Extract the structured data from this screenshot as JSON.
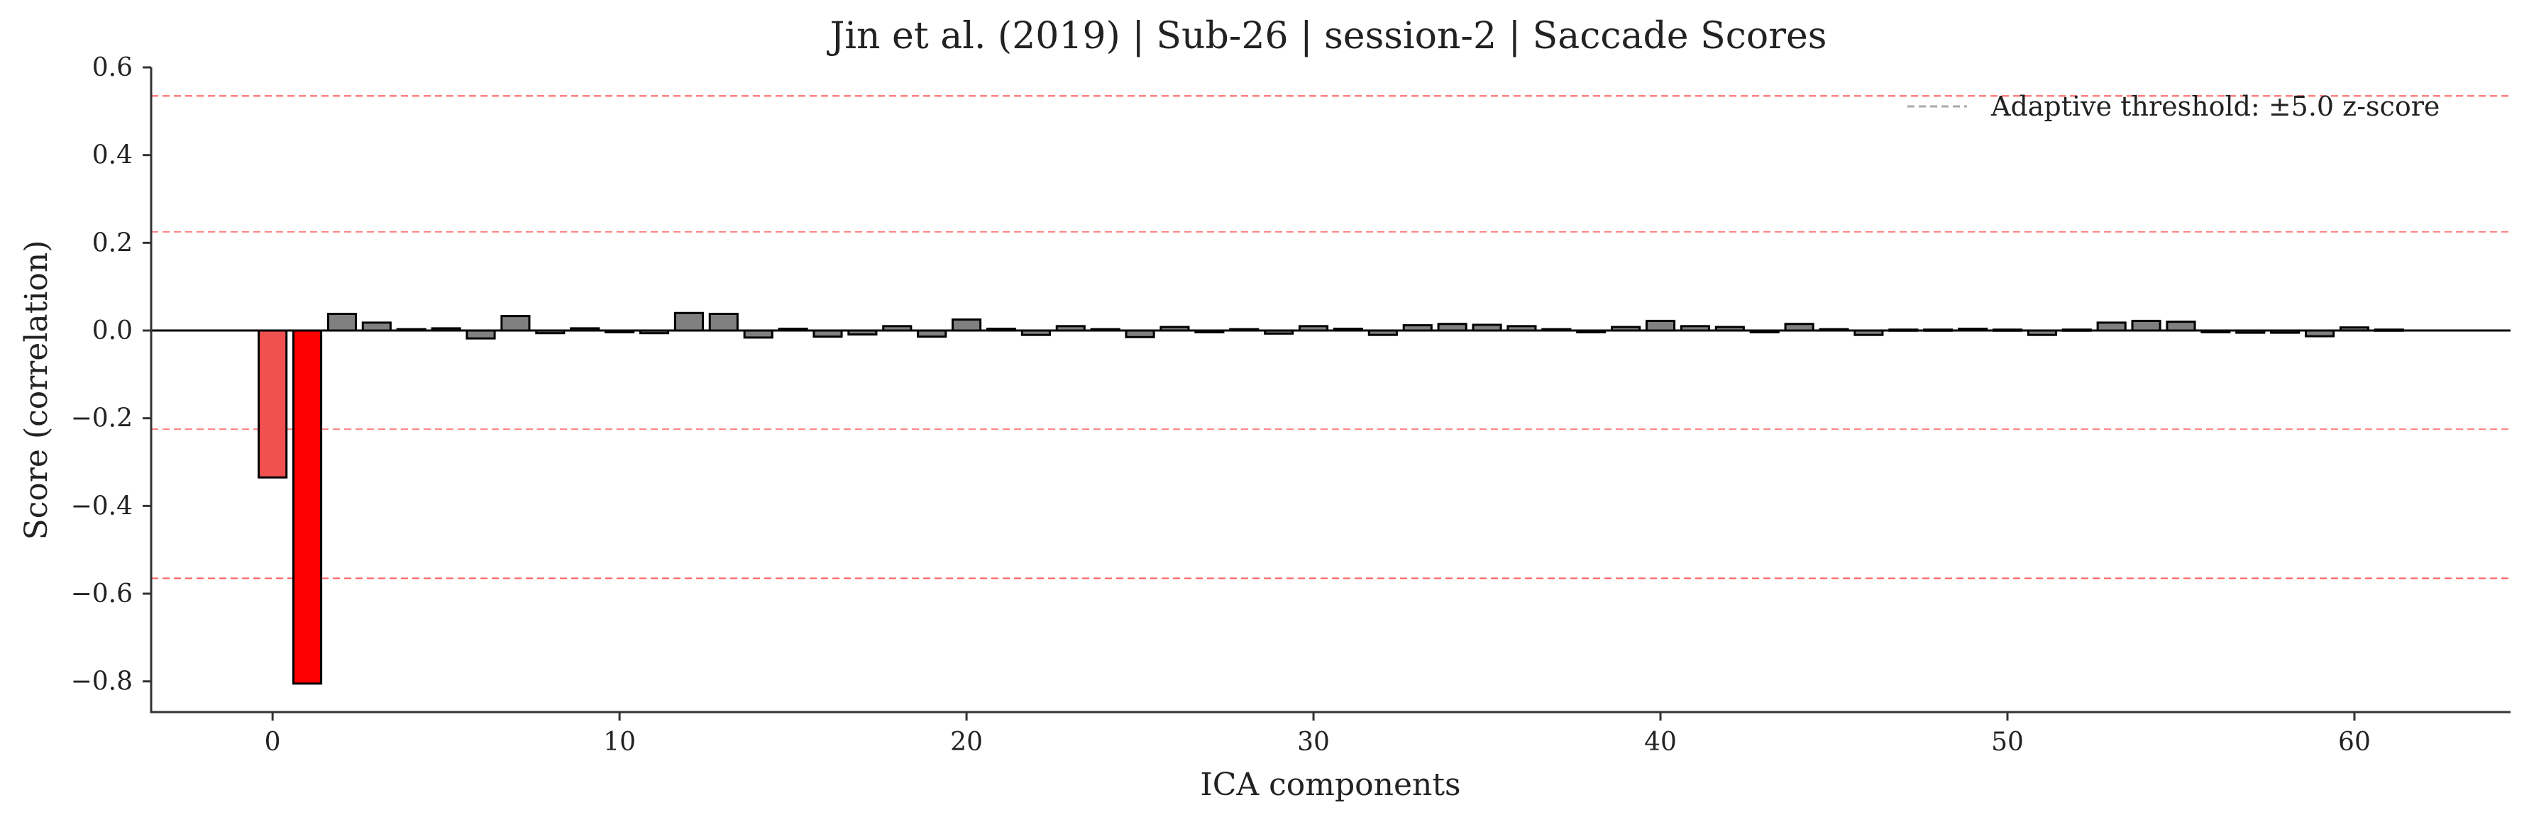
{
  "chart_data": {
    "type": "bar",
    "title": "Jin et al. (2019) | Sub-26 | session-2 | Saccade Scores",
    "xlabel": "ICA components",
    "ylabel": "Score (correlation)",
    "xlim": [
      -3.5,
      64.5
    ],
    "ylim": [
      -0.87,
      0.6
    ],
    "x_ticks": [
      0,
      10,
      20,
      30,
      40,
      50,
      60
    ],
    "x_tick_labels": [
      "0",
      "10",
      "20",
      "30",
      "40",
      "50",
      "60"
    ],
    "y_ticks": [
      0.6,
      0.4,
      0.2,
      0.0,
      -0.2,
      -0.4,
      -0.6,
      -0.8
    ],
    "y_tick_labels": [
      "0.6",
      "0.4",
      "0.2",
      "0.0",
      "−0.2",
      "−0.4",
      "−0.6",
      "−0.8"
    ],
    "x": [
      0,
      1,
      2,
      3,
      4,
      5,
      6,
      7,
      8,
      9,
      10,
      11,
      12,
      13,
      14,
      15,
      16,
      17,
      18,
      19,
      20,
      21,
      22,
      23,
      24,
      25,
      26,
      27,
      28,
      29,
      30,
      31,
      32,
      33,
      34,
      35,
      36,
      37,
      38,
      39,
      40,
      41,
      42,
      43,
      44,
      45,
      46,
      47,
      48,
      49,
      50,
      51,
      52,
      53,
      54,
      55,
      56,
      57,
      58,
      59,
      60,
      61
    ],
    "values": [
      -0.335,
      -0.805,
      0.038,
      0.018,
      0.003,
      0.005,
      -0.018,
      0.033,
      -0.006,
      0.005,
      -0.004,
      -0.006,
      0.04,
      0.038,
      -0.016,
      0.004,
      -0.014,
      -0.009,
      0.01,
      -0.014,
      0.025,
      0.004,
      -0.01,
      0.01,
      0.003,
      -0.015,
      0.008,
      -0.004,
      0.003,
      -0.007,
      0.01,
      0.004,
      -0.01,
      0.012,
      0.015,
      0.013,
      0.01,
      0.003,
      -0.004,
      0.008,
      0.022,
      0.01,
      0.008,
      -0.004,
      0.015,
      0.003,
      -0.01,
      0.002,
      0.002,
      0.004,
      0.002,
      -0.01,
      0.002,
      0.018,
      0.022,
      0.02,
      -0.004,
      -0.005,
      -0.005,
      -0.013,
      0.007,
      0.002
    ],
    "flagged_components": [
      0,
      1
    ],
    "flagged_colors": [
      "#f05050",
      "#ff0000"
    ],
    "bar_color": "#808080",
    "bar_edge_color": "#000000",
    "threshold_lines": [
      0.535,
      0.225,
      -0.225,
      -0.565
    ],
    "threshold_color": "#ff4d4d",
    "legend": {
      "label": "Adaptive threshold: ±5.0 z-score",
      "line_color": "#aaaaaa",
      "placement": "top-right"
    },
    "grid": false
  }
}
